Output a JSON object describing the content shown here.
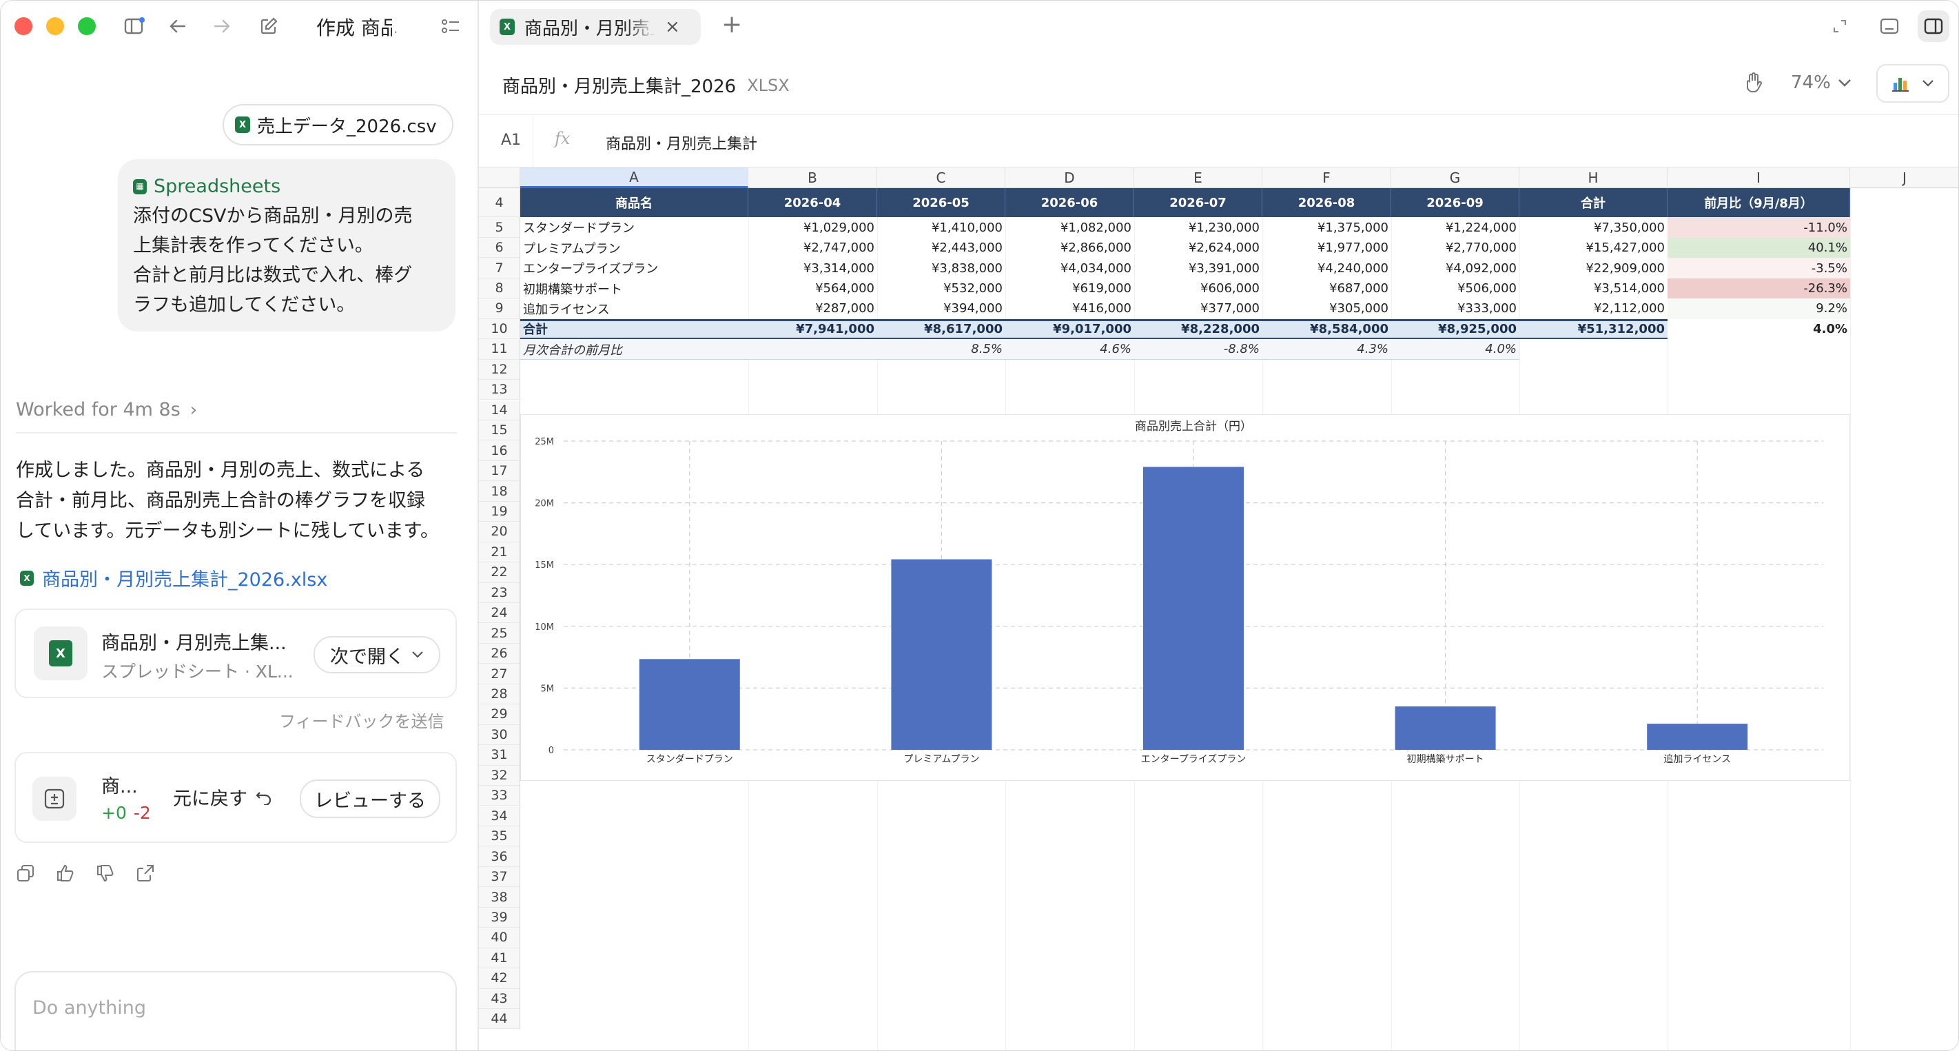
{
  "left": {
    "title_text": "作成 商品",
    "csv_chip": "売上データ_2026.csv",
    "bubble_app": "Spreadsheets",
    "bubble_lines": [
      "添付のCSVから商品別・月別の売",
      "上集計表を作ってください。",
      "合計と前月比は数式で入れ、棒グ",
      "ラフも追加してください。"
    ],
    "worked_for": "Worked for 4m 8s",
    "response_lines": [
      "作成しました。商品別・月別の売上、数式による",
      "合計・前月比、商品別売上合計の棒グラフを収録",
      "しています。元データも別シートに残しています。"
    ],
    "file_link": "商品別・月別売上集計_2026.xlsx",
    "file_card_title": "商品別・月別売上集...",
    "file_card_sub": "スプレッドシート · XL...",
    "open_with": "次で開く",
    "feedback": "フィードバックを送信",
    "change_title": "商...",
    "change_plus": "+0",
    "change_minus": "-2",
    "revert": "元に戻す",
    "review": "レビューする",
    "composer_placeholder": "Do anything"
  },
  "tab": {
    "label": "商品別・月別売上集計"
  },
  "doc": {
    "name": "商品別・月別売上集計_2026",
    "ext": "XLSX",
    "zoom": "74%"
  },
  "formula": {
    "ref": "A1",
    "fx": "fx",
    "value": "商品別・月別売上集計"
  },
  "sheet": {
    "columns": [
      "A",
      "B",
      "C",
      "D",
      "E",
      "F",
      "G",
      "H",
      "I",
      "J"
    ],
    "headers": [
      "商品名",
      "2026-04",
      "2026-05",
      "2026-06",
      "2026-07",
      "2026-08",
      "2026-09",
      "合計",
      "前月比（9月/8月）"
    ],
    "rows": [
      {
        "name": "スタンダードプラン",
        "vals": [
          "¥1,029,000",
          "¥1,410,000",
          "¥1,082,000",
          "¥1,230,000",
          "¥1,375,000",
          "¥1,224,000",
          "¥7,350,000"
        ],
        "mom": "-11.0%",
        "mom_color": "#f6e1e1"
      },
      {
        "name": "プレミアムプラン",
        "vals": [
          "¥2,747,000",
          "¥2,443,000",
          "¥2,866,000",
          "¥2,624,000",
          "¥1,977,000",
          "¥2,770,000",
          "¥15,427,000"
        ],
        "mom": "40.1%",
        "mom_color": "#dcebd6"
      },
      {
        "name": "エンタープライズプラン",
        "vals": [
          "¥3,314,000",
          "¥3,838,000",
          "¥4,034,000",
          "¥3,391,000",
          "¥4,240,000",
          "¥4,092,000",
          "¥22,909,000"
        ],
        "mom": "-3.5%",
        "mom_color": "#fbf1f1"
      },
      {
        "name": "初期構築サポート",
        "vals": [
          "¥564,000",
          "¥532,000",
          "¥619,000",
          "¥606,000",
          "¥687,000",
          "¥506,000",
          "¥3,514,000"
        ],
        "mom": "-26.3%",
        "mom_color": "#efcdcd"
      },
      {
        "name": "追加ライセンス",
        "vals": [
          "¥287,000",
          "¥394,000",
          "¥416,000",
          "¥377,000",
          "¥305,000",
          "¥333,000",
          "¥2,112,000"
        ],
        "mom": "9.2%",
        "mom_color": "#f7f9f6"
      }
    ],
    "total": {
      "name": "合計",
      "vals": [
        "¥7,941,000",
        "¥8,617,000",
        "¥9,017,000",
        "¥8,228,000",
        "¥8,584,000",
        "¥8,925,000",
        "¥51,312,000"
      ],
      "mom": "4.0%"
    },
    "mom_row": {
      "name": "月次合計の前月比",
      "vals": [
        "",
        "8.5%",
        "4.6%",
        "-8.8%",
        "4.3%",
        "4.0%"
      ]
    },
    "row_numbers": [
      "4",
      "5",
      "6",
      "7",
      "8",
      "9",
      "10",
      "11",
      "12",
      "13",
      "14",
      "15",
      "16",
      "17",
      "18",
      "19",
      "20",
      "21",
      "22",
      "23",
      "24",
      "25",
      "26",
      "27",
      "28",
      "29",
      "30",
      "31",
      "32",
      "33",
      "34",
      "35",
      "36",
      "37",
      "38",
      "39",
      "40",
      "41",
      "42",
      "43",
      "44"
    ]
  },
  "chart_data": {
    "type": "bar",
    "title": "商品別売上合計（円）",
    "categories": [
      "スタンダードプラン",
      "プレミアムプラン",
      "エンタープライズプラン",
      "初期構築サポート",
      "追加ライセンス"
    ],
    "values": [
      7350000,
      15427000,
      22909000,
      3514000,
      2112000
    ],
    "ylim": [
      0,
      25000000
    ],
    "yticks": [
      "0",
      "5M",
      "10M",
      "15M",
      "20M",
      "25M"
    ],
    "color": "#4f6fbf",
    "grid": true
  }
}
